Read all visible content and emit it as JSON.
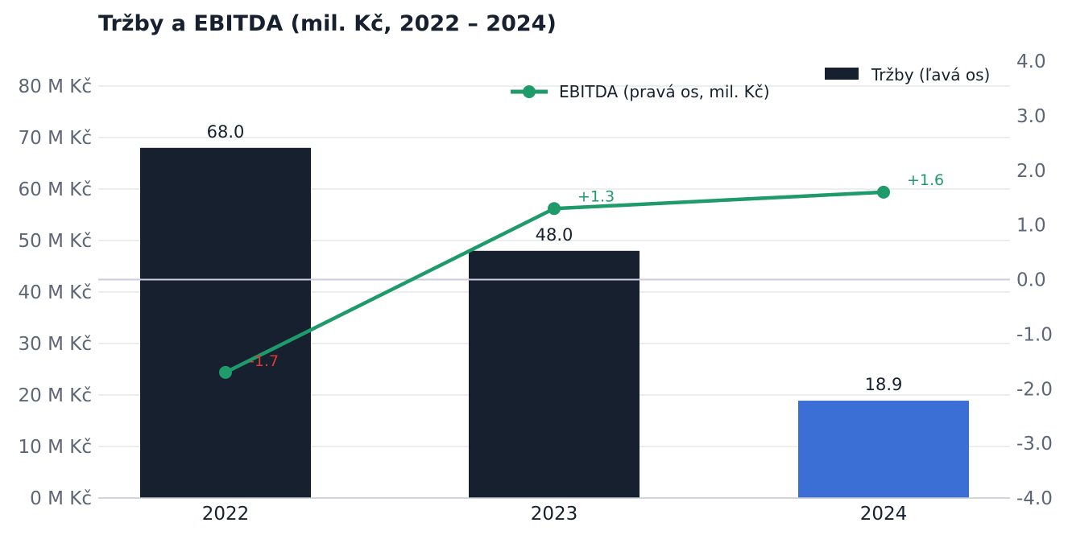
{
  "chart_data": {
    "title": "Tržby a EBITDA (mil. Kč, 2022 – 2024)",
    "type": "bar",
    "categories": [
      "2022",
      "2023",
      "2024"
    ],
    "series": [
      {
        "name": "Tržby (ľavá os)",
        "type": "bar",
        "axis": "left",
        "values": [
          68.0,
          48.0,
          18.9
        ],
        "value_labels": [
          "68.0",
          "48.0",
          "18.9"
        ],
        "colors": [
          "#16202e",
          "#16202e",
          "#3b6fd6"
        ]
      },
      {
        "name": "EBITDA (pravá os, mil. Kč)",
        "type": "line",
        "axis": "right",
        "values": [
          -1.7,
          1.3,
          1.6
        ],
        "value_labels": [
          "-1.7",
          "+1.3",
          "+1.6"
        ],
        "color": "#1f9a6a",
        "negative_label_color": "#e0392e"
      }
    ],
    "y_left": {
      "lim": [
        0,
        80
      ],
      "ticks": [
        0,
        10,
        20,
        30,
        40,
        50,
        60,
        70,
        80
      ],
      "tick_labels": [
        "0 M Kč",
        "10 M Kč",
        "20 M Kč",
        "30 M Kč",
        "40 M Kč",
        "50 M Kč",
        "60 M Kč",
        "70 M Kč",
        "80 M Kč"
      ]
    },
    "y_right": {
      "lim": [
        -4,
        4
      ],
      "ticks": [
        -4,
        -3,
        -2,
        -1,
        0,
        1,
        2,
        3,
        4
      ],
      "tick_labels": [
        "-4.0",
        "-3.0",
        "-2.0",
        "-1.0",
        "0.0",
        "1.0",
        "2.0",
        "3.0",
        "4.0"
      ],
      "zero_line": true
    },
    "grid": true,
    "legend": "top-right"
  }
}
